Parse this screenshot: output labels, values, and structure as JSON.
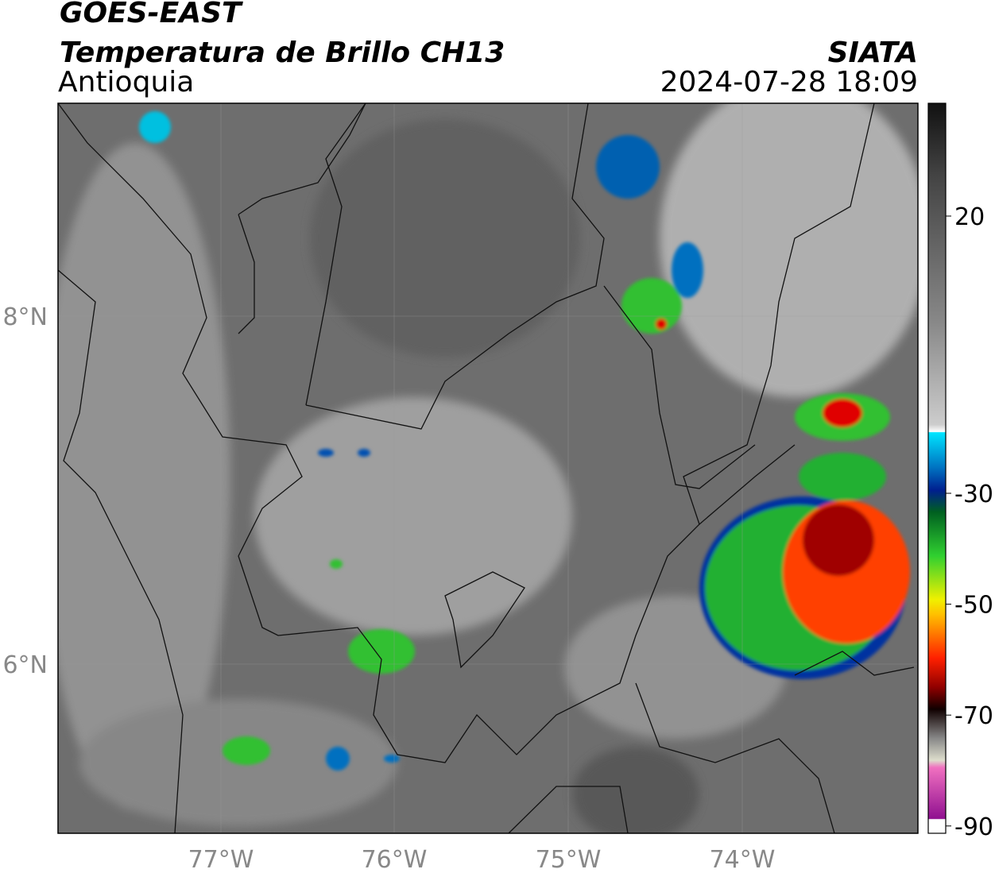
{
  "header": {
    "satellite": "GOES-EAST",
    "product": "Temperatura de Brillo CH13",
    "region": "Antioquia",
    "source": "SIATA",
    "datetime": "2024-07-28 18:09"
  },
  "map": {
    "lon_labels": [
      "77°W",
      "76°W",
      "75°W",
      "74°W"
    ],
    "lat_labels": [
      "8°N",
      "6°N"
    ]
  },
  "colorbar": {
    "ticks": [
      20,
      -30,
      -50,
      -70,
      -90
    ]
  }
}
